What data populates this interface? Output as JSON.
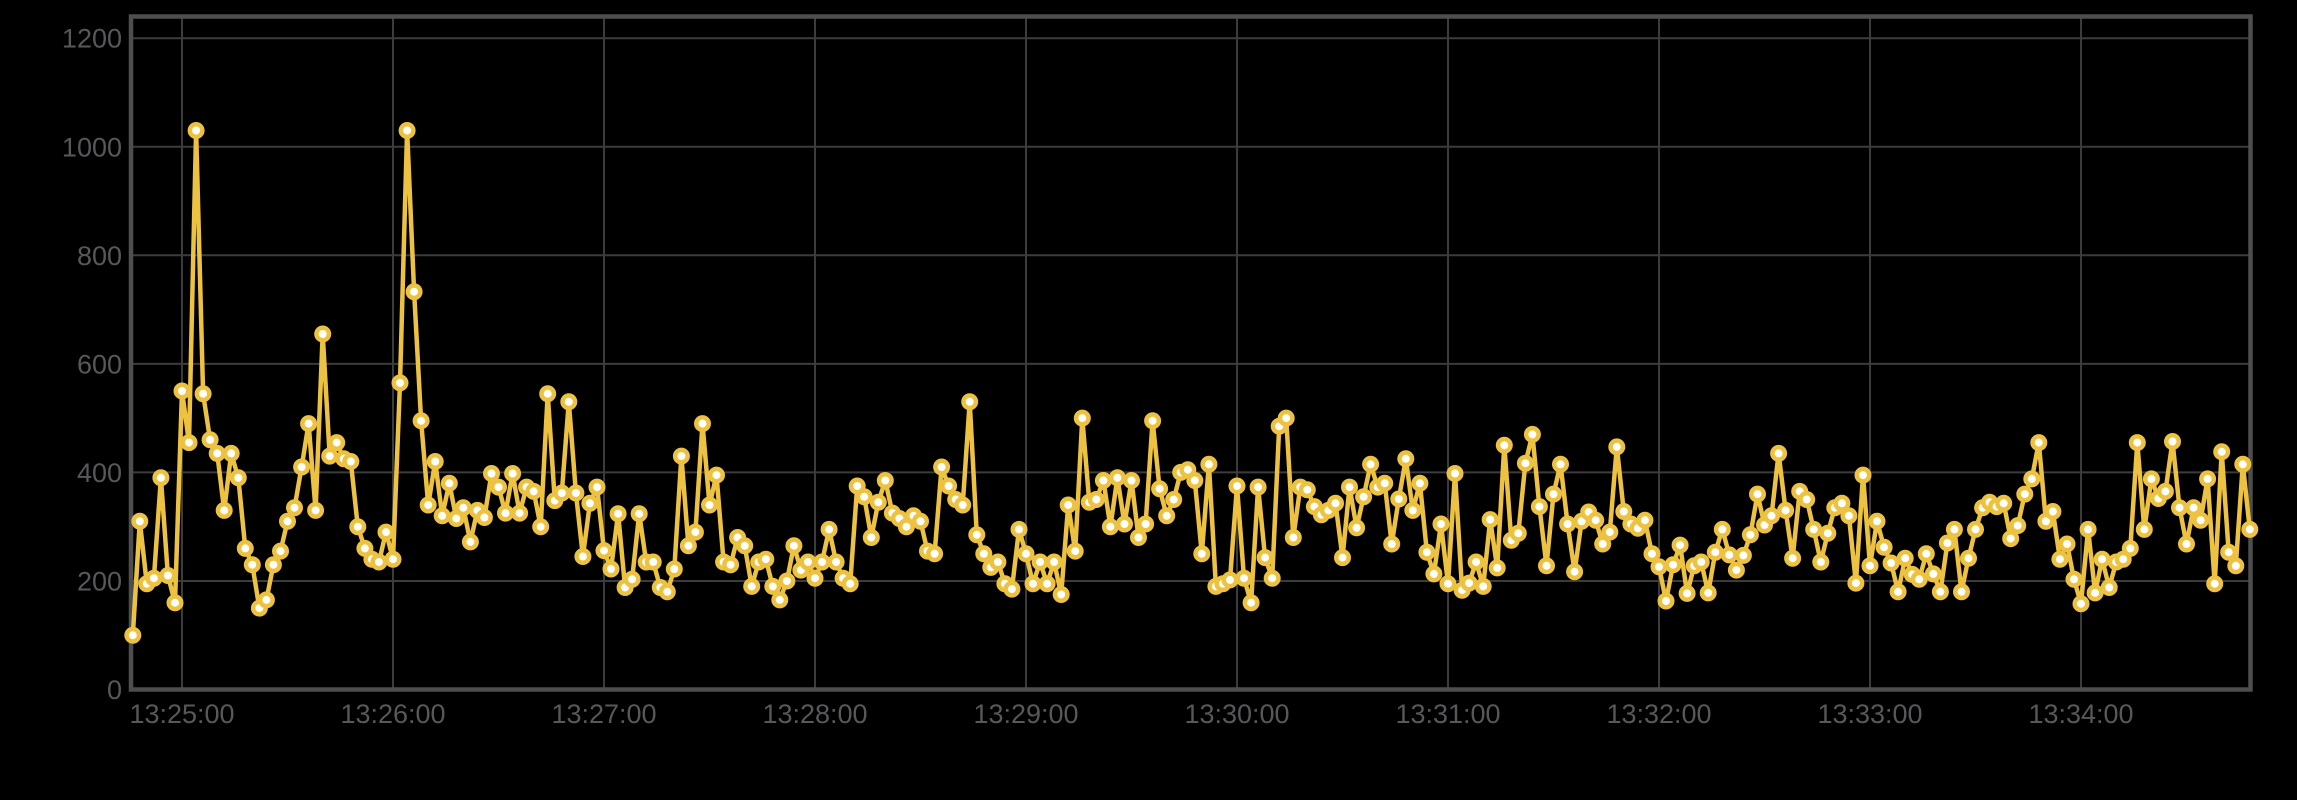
{
  "chart_data": {
    "type": "line",
    "title": "",
    "xlabel": "",
    "ylabel": "",
    "legend": "none",
    "grid": "on",
    "background_color": "#000000",
    "series_color": "#EDC240",
    "marker_fill_color": "#FFFEF8",
    "grid_color": "#3C3C3C",
    "border_color": "#4E4E4E",
    "tick_text_color": "#56585A",
    "y_ticks": [
      "0",
      "200",
      "400",
      "600",
      "800",
      "1000",
      "1200"
    ],
    "x_ticks": [
      "13:25:00",
      "13:26:00",
      "13:27:00",
      "13:28:00",
      "13:29:00",
      "13:30:00",
      "13:31:00",
      "13:32:00",
      "13:33:00",
      "13:34:00"
    ],
    "ylim": [
      0,
      1240
    ],
    "xlim_time": [
      "13:24:45",
      "13:34:49"
    ],
    "start_time": "13:24:46",
    "interval_seconds": 2,
    "end_time": "13:34:48",
    "values": [
      100,
      310,
      195,
      205,
      390,
      210,
      160,
      550,
      455,
      1030,
      545,
      460,
      435,
      330,
      435,
      390,
      260,
      230,
      150,
      165,
      230,
      255,
      310,
      335,
      410,
      490,
      330,
      655,
      430,
      455,
      425,
      420,
      300,
      260,
      240,
      235,
      290,
      240,
      565,
      1030,
      733,
      495,
      340,
      420,
      320,
      380,
      315,
      335,
      272,
      330,
      317,
      398,
      373,
      325,
      398,
      325,
      373,
      365,
      300,
      545,
      348,
      362,
      530,
      362,
      245,
      343,
      373,
      256,
      222,
      324,
      188,
      203,
      324,
      235,
      235,
      188,
      180,
      222,
      430,
      265,
      290,
      490,
      340,
      395,
      235,
      230,
      280,
      265,
      190,
      235,
      240,
      190,
      165,
      200,
      265,
      220,
      235,
      205,
      235,
      295,
      235,
      205,
      195,
      375,
      355,
      280,
      345,
      385,
      325,
      315,
      300,
      320,
      310,
      255,
      250,
      410,
      375,
      350,
      340,
      530,
      285,
      250,
      225,
      235,
      195,
      185,
      295,
      250,
      195,
      235,
      195,
      235,
      175,
      340,
      255,
      500,
      345,
      350,
      385,
      300,
      390,
      305,
      385,
      280,
      305,
      495,
      370,
      320,
      350,
      400,
      405,
      385,
      250,
      415,
      190,
      195,
      202,
      375,
      205,
      160,
      373,
      243,
      205,
      485,
      500,
      280,
      373,
      368,
      337,
      322,
      330,
      343,
      243,
      373,
      298,
      355,
      415,
      373,
      380,
      268,
      351,
      425,
      330,
      380,
      253,
      213,
      305,
      195,
      398,
      183,
      196,
      235,
      190,
      313,
      224,
      450,
      275,
      288,
      417,
      470,
      337,
      228,
      360,
      415,
      305,
      217,
      310,
      327,
      312,
      268,
      290,
      447,
      328,
      305,
      297,
      312,
      250,
      226,
      163,
      230,
      266,
      177,
      228,
      235,
      178,
      253,
      295,
      248,
      220,
      247,
      285,
      360,
      303,
      320,
      435,
      330,
      242,
      365,
      350,
      295,
      235,
      288,
      335,
      343,
      320,
      196,
      395,
      228,
      310,
      262,
      233,
      180,
      242,
      212,
      203,
      250,
      213,
      180,
      270,
      295,
      180,
      242,
      295,
      335,
      345,
      337,
      343,
      278,
      302,
      360,
      388,
      455,
      310,
      328,
      240,
      268,
      203,
      158,
      295,
      178,
      240,
      188,
      235,
      240,
      260,
      455,
      295,
      388,
      352,
      365,
      457,
      335,
      268,
      335,
      312,
      388,
      195,
      438,
      253,
      228,
      415,
      295
    ]
  }
}
